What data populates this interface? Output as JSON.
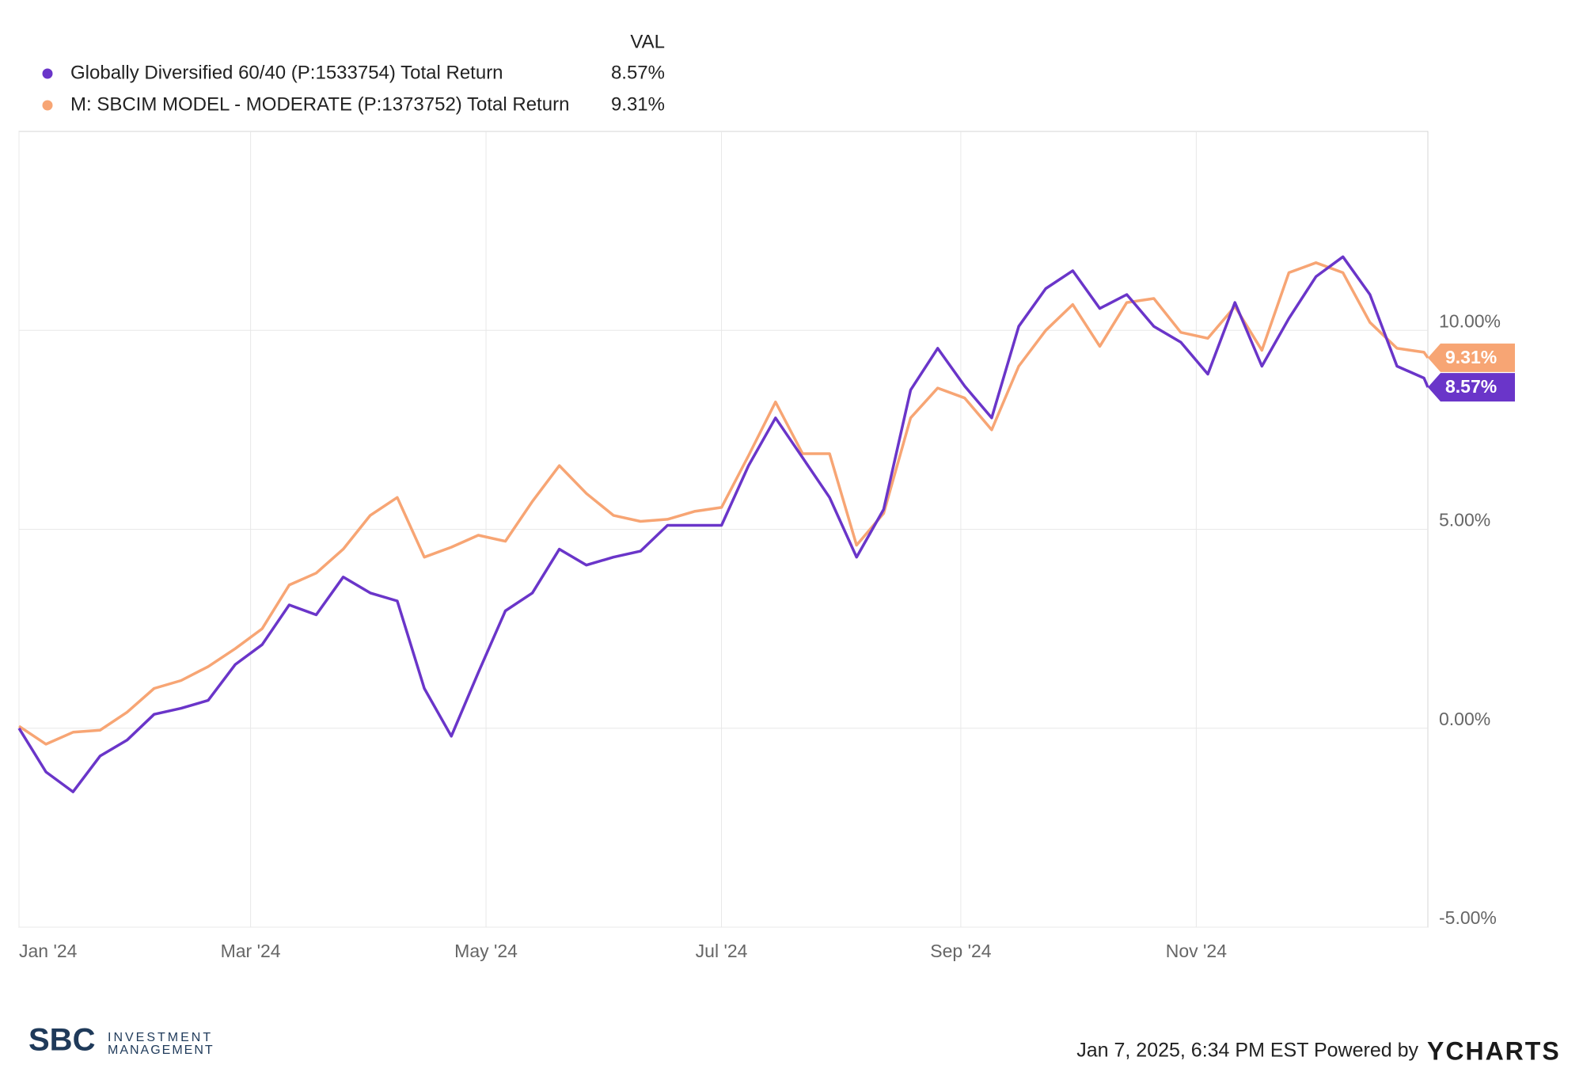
{
  "chart_data": {
    "type": "line",
    "legend_header": "VAL",
    "x": [
      "2024-01-01",
      "2024-01-08",
      "2024-01-15",
      "2024-01-22",
      "2024-01-29",
      "2024-02-05",
      "2024-02-12",
      "2024-02-19",
      "2024-02-26",
      "2024-03-04",
      "2024-03-11",
      "2024-03-18",
      "2024-03-25",
      "2024-04-01",
      "2024-04-08",
      "2024-04-15",
      "2024-04-22",
      "2024-04-29",
      "2024-05-06",
      "2024-05-13",
      "2024-05-20",
      "2024-05-27",
      "2024-06-03",
      "2024-06-10",
      "2024-06-17",
      "2024-06-24",
      "2024-07-01",
      "2024-07-08",
      "2024-07-15",
      "2024-07-22",
      "2024-07-29",
      "2024-08-05",
      "2024-08-12",
      "2024-08-19",
      "2024-08-26",
      "2024-09-02",
      "2024-09-09",
      "2024-09-16",
      "2024-09-23",
      "2024-09-30",
      "2024-10-07",
      "2024-10-14",
      "2024-10-21",
      "2024-10-28",
      "2024-11-04",
      "2024-11-11",
      "2024-11-18",
      "2024-11-25",
      "2024-12-02",
      "2024-12-09",
      "2024-12-16",
      "2024-12-23",
      "2024-12-30",
      "2024-12-31"
    ],
    "series": [
      {
        "name": "Globally Diversified 60/40 (P:1533754) Total Return",
        "color": "#6a35c9",
        "values": [
          0,
          -1.1,
          -1.6,
          -0.7,
          -0.3,
          0.35,
          0.5,
          0.7,
          1.6,
          2.1,
          3.1,
          2.85,
          3.8,
          3.4,
          3.2,
          1.0,
          -0.2,
          1.4,
          2.95,
          3.4,
          4.5,
          4.1,
          4.3,
          4.45,
          5.1,
          5.1,
          5.1,
          6.6,
          7.8,
          6.8,
          5.8,
          4.3,
          5.5,
          8.5,
          9.55,
          8.6,
          7.8,
          10.1,
          11.05,
          11.5,
          10.55,
          10.9,
          10.1,
          9.7,
          8.9,
          10.7,
          9.1,
          10.3,
          11.35,
          11.85,
          10.9,
          9.1,
          8.8,
          8.57
        ],
        "value_labels": [
          null,
          null,
          null,
          null,
          null,
          null,
          null,
          null,
          null,
          null,
          null,
          null,
          null,
          null,
          null,
          null,
          null,
          null,
          null,
          null,
          null,
          null,
          null,
          null,
          null,
          null,
          null,
          null,
          null,
          null,
          null,
          null,
          null,
          null,
          null,
          null,
          null,
          null,
          null,
          null,
          null,
          null,
          null,
          null,
          null,
          null,
          null,
          null,
          null,
          null,
          null,
          null,
          null,
          "8.57%"
        ]
      },
      {
        "name": "M: SBCIM MODEL - MODERATE (P:1373752) Total Return",
        "color": "#f7a574",
        "values": [
          0.05,
          -0.4,
          -0.1,
          -0.05,
          0.4,
          1.0,
          1.2,
          1.55,
          2.0,
          2.5,
          3.6,
          3.9,
          4.5,
          5.35,
          5.8,
          4.3,
          4.55,
          4.85,
          4.7,
          5.7,
          6.6,
          5.9,
          5.35,
          5.2,
          5.25,
          5.45,
          5.55,
          6.85,
          8.2,
          6.9,
          6.9,
          4.6,
          5.4,
          7.8,
          8.55,
          8.3,
          7.5,
          9.1,
          10.0,
          10.65,
          9.6,
          10.7,
          10.8,
          9.95,
          9.8,
          10.6,
          9.5,
          11.45,
          11.7,
          11.45,
          10.2,
          9.55,
          9.45,
          9.31
        ],
        "value_labels": [
          null,
          null,
          null,
          null,
          null,
          null,
          null,
          null,
          null,
          null,
          null,
          null,
          null,
          null,
          null,
          null,
          null,
          null,
          null,
          null,
          null,
          null,
          null,
          null,
          null,
          null,
          null,
          null,
          null,
          null,
          null,
          null,
          null,
          null,
          null,
          null,
          null,
          null,
          null,
          null,
          null,
          null,
          null,
          null,
          null,
          null,
          null,
          null,
          null,
          null,
          null,
          null,
          null,
          "9.31%"
        ]
      }
    ],
    "xlim": [
      "2024-01-01",
      "2024-12-31"
    ],
    "xticks": [
      {
        "value": "2024-01-01",
        "label": "Jan '24"
      },
      {
        "value": "2024-03-01",
        "label": "Mar '24"
      },
      {
        "value": "2024-05-01",
        "label": "May '24"
      },
      {
        "value": "2024-07-01",
        "label": "Jul '24"
      },
      {
        "value": "2024-09-01",
        "label": "Sep '24"
      },
      {
        "value": "2024-11-01",
        "label": "Nov '24"
      }
    ],
    "ylim": [
      -5,
      15
    ],
    "yticks": [
      {
        "value": -5,
        "label": "-5.00%"
      },
      {
        "value": 0,
        "label": "0.00%"
      },
      {
        "value": 5,
        "label": "5.00%"
      },
      {
        "value": 10,
        "label": "10.00%"
      }
    ],
    "grid": true
  },
  "footer": {
    "timestamp": "Jan 7, 2025, 6:34 PM EST Powered by",
    "brand": "YCHARTS",
    "logo_letters": "SBC",
    "logo_line1": "INVESTMENT",
    "logo_line2": "MANAGEMENT"
  }
}
